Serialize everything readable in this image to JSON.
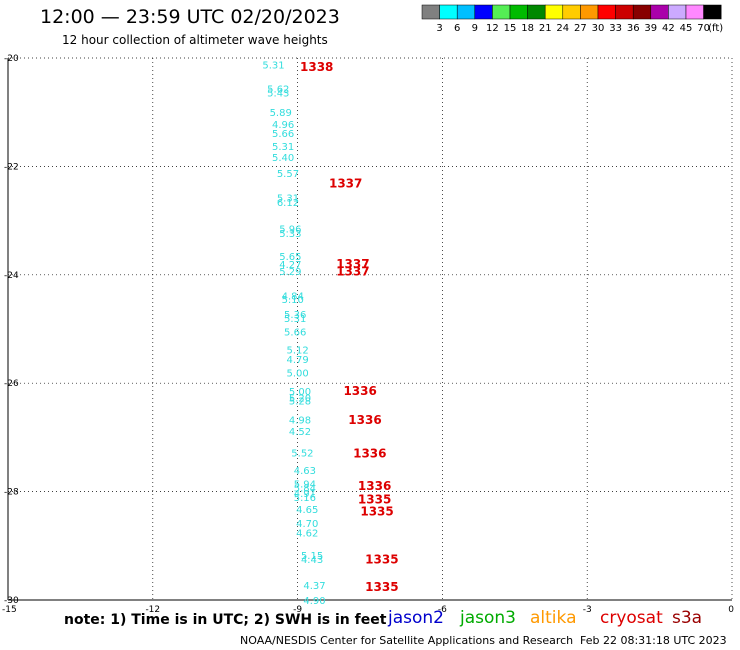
{
  "header": {
    "title": "12:00 — 23:59 UTC 02/20/2023",
    "subtitle": "12 hour collection of altimeter wave heights"
  },
  "legend": {
    "colors": [
      "#808080",
      "#00ffff",
      "#00bfff",
      "#0000ff",
      "#55ee55",
      "#00bb00",
      "#008800",
      "#ffff00",
      "#ffcc00",
      "#ff9900",
      "#ff0000",
      "#cc0000",
      "#880000",
      "#aa00aa",
      "#ccaaff",
      "#ff88ff",
      "#000000"
    ],
    "labels": [
      "3",
      "6",
      "9",
      "12",
      "15",
      "18",
      "21",
      "24",
      "27",
      "30",
      "33",
      "36",
      "39",
      "42",
      "45",
      "70"
    ],
    "unit": "(ft)"
  },
  "footer": {
    "note": "note: 1) Time is in UTC; 2) SWH is in feet",
    "satellites": [
      {
        "name": "jason2",
        "color": "#0000cc"
      },
      {
        "name": "jason3",
        "color": "#00aa00"
      },
      {
        "name": "altika",
        "color": "#ff9900"
      },
      {
        "name": "cryosat",
        "color": "#dd0000"
      },
      {
        "name": "s3a",
        "color": "#990000"
      }
    ],
    "credit": "NOAA/NESDIS Center for Satellite Applications and Research",
    "timestamp": "Feb 22 08:31:18 UTC 2023"
  },
  "chart_data": {
    "type": "scatter",
    "xlim": [
      -15,
      0
    ],
    "ylim": [
      -30,
      -20
    ],
    "x_ticks": [
      "-15",
      "-12",
      "-9",
      "-6",
      "-3",
      "0"
    ],
    "y_ticks": [
      "-20",
      "-22",
      "-24",
      "-26",
      "-28",
      "-30"
    ],
    "grid": true,
    "swh_color": "#33dddd",
    "time_color": "#dd0000",
    "swh_points": [
      {
        "x": -9.5,
        "y": -20.12,
        "v": "5.31"
      },
      {
        "x": -9.4,
        "y": -20.56,
        "v": "5.62"
      },
      {
        "x": -9.4,
        "y": -20.64,
        "v": "5.43"
      },
      {
        "x": -9.35,
        "y": -21.0,
        "v": "5.89"
      },
      {
        "x": -9.3,
        "y": -21.22,
        "v": "4.96"
      },
      {
        "x": -9.3,
        "y": -21.38,
        "v": "5.66"
      },
      {
        "x": -9.3,
        "y": -21.62,
        "v": "5.31"
      },
      {
        "x": -9.3,
        "y": -21.83,
        "v": "5.40"
      },
      {
        "x": -9.2,
        "y": -22.12,
        "v": "5.57"
      },
      {
        "x": -9.2,
        "y": -22.57,
        "v": "5.31"
      },
      {
        "x": -9.2,
        "y": -22.66,
        "v": "6.12"
      },
      {
        "x": -9.15,
        "y": -23.15,
        "v": "5.96"
      },
      {
        "x": -9.15,
        "y": -23.23,
        "v": "5.33"
      },
      {
        "x": -9.15,
        "y": -23.65,
        "v": "5.65"
      },
      {
        "x": -9.15,
        "y": -23.8,
        "v": "4.27"
      },
      {
        "x": -9.15,
        "y": -23.93,
        "v": "5.29"
      },
      {
        "x": -9.1,
        "y": -24.38,
        "v": "4.84"
      },
      {
        "x": -9.1,
        "y": -24.45,
        "v": "5.10"
      },
      {
        "x": -9.05,
        "y": -24.72,
        "v": "5.36"
      },
      {
        "x": -9.05,
        "y": -24.8,
        "v": "5.31"
      },
      {
        "x": -9.05,
        "y": -25.05,
        "v": "5.66"
      },
      {
        "x": -9.0,
        "y": -25.38,
        "v": "5.12"
      },
      {
        "x": -9.0,
        "y": -25.55,
        "v": "4.79"
      },
      {
        "x": -9.0,
        "y": -25.8,
        "v": "5.00"
      },
      {
        "x": -8.95,
        "y": -26.14,
        "v": "5.00"
      },
      {
        "x": -8.95,
        "y": -26.26,
        "v": "5.20"
      },
      {
        "x": -8.95,
        "y": -26.32,
        "v": "5.28"
      },
      {
        "x": -8.95,
        "y": -26.67,
        "v": "4.98"
      },
      {
        "x": -8.95,
        "y": -26.88,
        "v": "4.52"
      },
      {
        "x": -8.9,
        "y": -27.28,
        "v": "5.52"
      },
      {
        "x": -8.85,
        "y": -27.6,
        "v": "4.63"
      },
      {
        "x": -8.85,
        "y": -27.85,
        "v": "5.94"
      },
      {
        "x": -8.85,
        "y": -27.92,
        "v": "5.84"
      },
      {
        "x": -8.85,
        "y": -28.03,
        "v": "4.91"
      },
      {
        "x": -8.85,
        "y": -28.1,
        "v": "5.16"
      },
      {
        "x": -8.8,
        "y": -28.32,
        "v": "4.65"
      },
      {
        "x": -8.8,
        "y": -28.58,
        "v": "4.70"
      },
      {
        "x": -8.8,
        "y": -28.75,
        "v": "4.62"
      },
      {
        "x": -8.7,
        "y": -29.17,
        "v": "5.15"
      },
      {
        "x": -8.7,
        "y": -29.24,
        "v": "4.43"
      },
      {
        "x": -8.65,
        "y": -29.72,
        "v": "4.37"
      },
      {
        "x": -8.65,
        "y": -30.0,
        "v": "4.90"
      }
    ],
    "time_labels": [
      {
        "x": -8.95,
        "y": -20.15,
        "v": "1338"
      },
      {
        "x": -8.35,
        "y": -22.3,
        "v": "1337"
      },
      {
        "x": -8.2,
        "y": -23.78,
        "v": "1337"
      },
      {
        "x": -8.2,
        "y": -23.92,
        "v": "1337"
      },
      {
        "x": -8.05,
        "y": -26.13,
        "v": "1336"
      },
      {
        "x": -7.95,
        "y": -26.66,
        "v": "1336"
      },
      {
        "x": -7.85,
        "y": -27.28,
        "v": "1336"
      },
      {
        "x": -7.75,
        "y": -27.88,
        "v": "1336"
      },
      {
        "x": -7.75,
        "y": -28.13,
        "v": "1335"
      },
      {
        "x": -7.7,
        "y": -28.35,
        "v": "1335"
      },
      {
        "x": -7.6,
        "y": -29.23,
        "v": "1335"
      },
      {
        "x": -7.6,
        "y": -29.74,
        "v": "1335"
      }
    ]
  }
}
